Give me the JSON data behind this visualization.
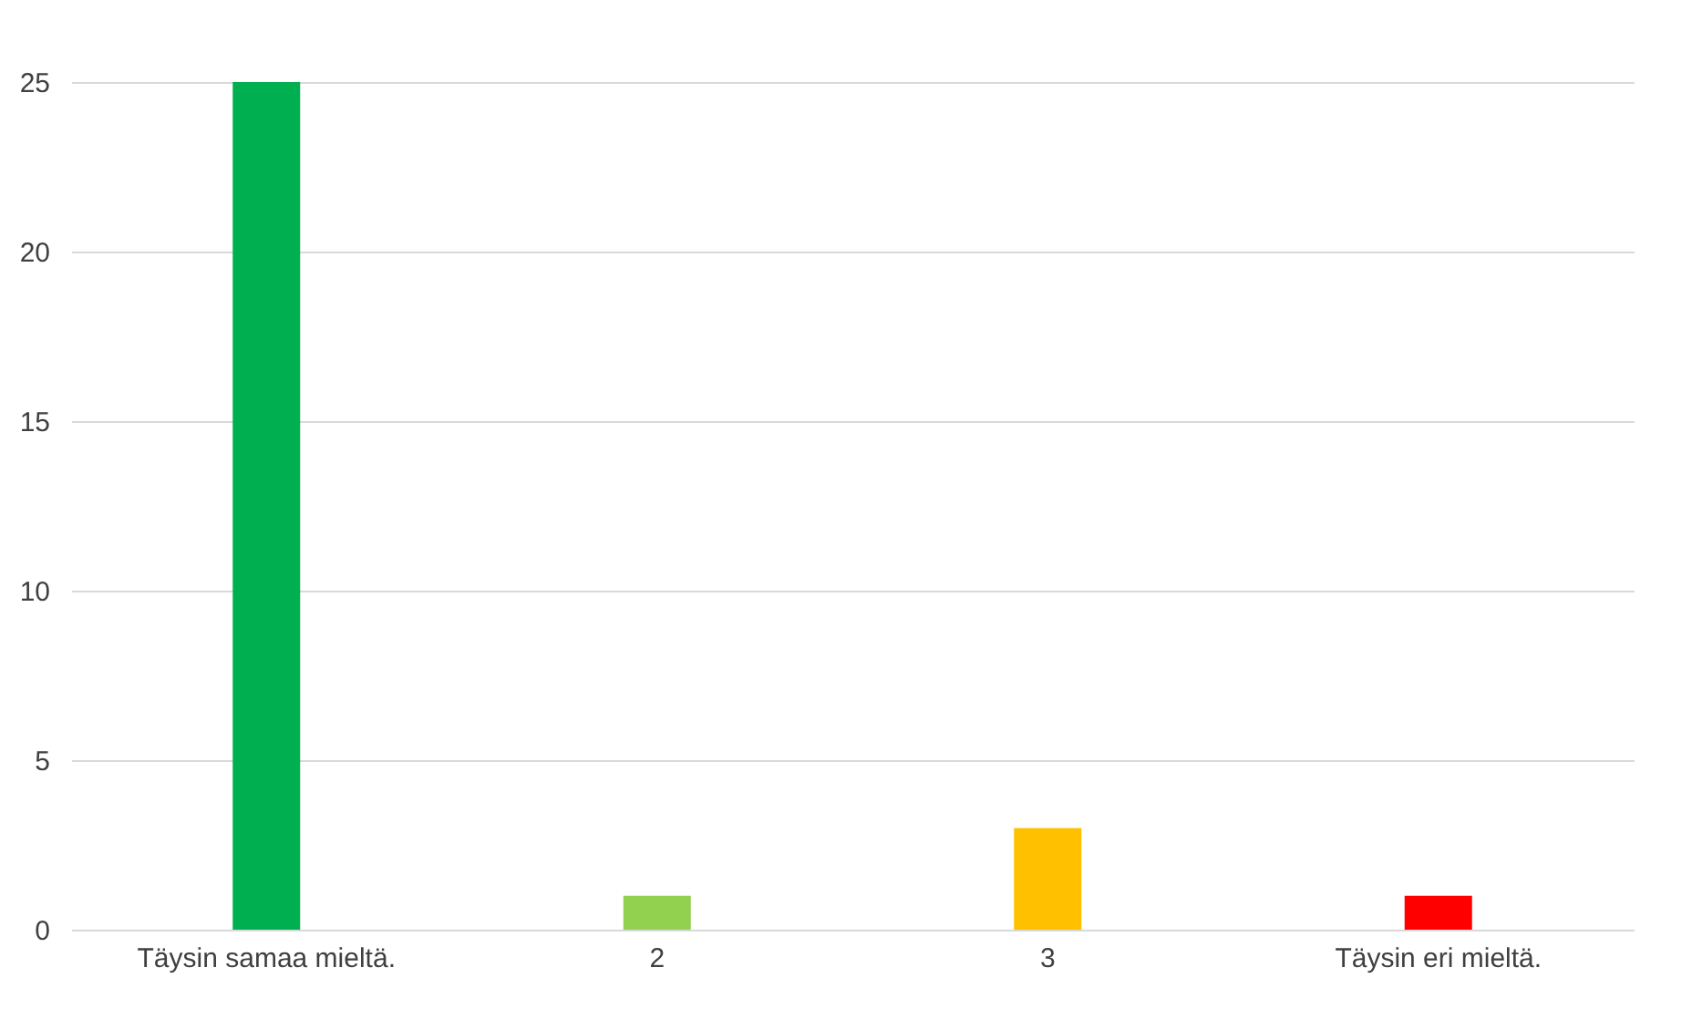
{
  "chart_data": {
    "type": "bar",
    "categories": [
      "Täysin samaa mieltä.",
      "2",
      "3",
      "Täysin eri mieltä."
    ],
    "values": [
      25,
      1,
      3,
      1
    ],
    "colors": [
      "#00b050",
      "#92d050",
      "#ffc000",
      "#ff0000"
    ],
    "ylim": [
      0,
      25
    ],
    "yticks": [
      0,
      5,
      10,
      15,
      20,
      25
    ],
    "grid": "y"
  }
}
